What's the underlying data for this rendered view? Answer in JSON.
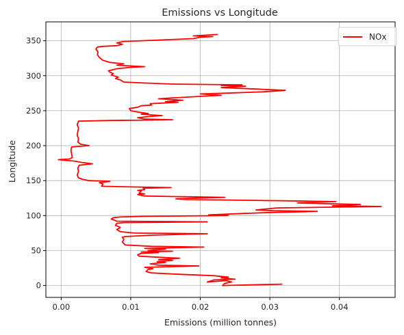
{
  "chart_data": {
    "type": "line",
    "title": "Emissions vs Longitude",
    "xlabel": "Emissions (million tonnes)",
    "ylabel": "Longitude",
    "xlim": [
      -0.0022,
      0.048
    ],
    "ylim": [
      -17,
      377
    ],
    "xticks": [
      0.0,
      0.01,
      0.02,
      0.03,
      0.04
    ],
    "xtick_labels": [
      "0.00",
      "0.01",
      "0.02",
      "0.03",
      "0.04"
    ],
    "yticks": [
      0,
      50,
      100,
      150,
      200,
      250,
      300,
      350
    ],
    "ytick_labels": [
      "0",
      "50",
      "100",
      "150",
      "200",
      "250",
      "300",
      "350"
    ],
    "grid": true,
    "legend": {
      "position": "top-right"
    },
    "series": [
      {
        "name": "NOx",
        "color": "#ff0000",
        "points": [
          [
            0.0318,
            2
          ],
          [
            0.0232,
            0
          ],
          [
            0.0235,
            3
          ],
          [
            0.0245,
            5
          ],
          [
            0.0237,
            7
          ],
          [
            0.021,
            5
          ],
          [
            0.022,
            8
          ],
          [
            0.025,
            9
          ],
          [
            0.023,
            11
          ],
          [
            0.024,
            12
          ],
          [
            0.022,
            14
          ],
          [
            0.017,
            16
          ],
          [
            0.013,
            18
          ],
          [
            0.0122,
            20
          ],
          [
            0.0125,
            23
          ],
          [
            0.0132,
            24
          ],
          [
            0.012,
            26
          ],
          [
            0.0198,
            28
          ],
          [
            0.014,
            29
          ],
          [
            0.0128,
            31
          ],
          [
            0.015,
            33
          ],
          [
            0.0138,
            34
          ],
          [
            0.016,
            36
          ],
          [
            0.014,
            37
          ],
          [
            0.017,
            39
          ],
          [
            0.013,
            41
          ],
          [
            0.0112,
            42
          ],
          [
            0.011,
            44
          ],
          [
            0.0115,
            46
          ],
          [
            0.014,
            47
          ],
          [
            0.0115,
            48
          ],
          [
            0.016,
            49
          ],
          [
            0.0125,
            50
          ],
          [
            0.015,
            52
          ],
          [
            0.012,
            53
          ],
          [
            0.0205,
            55
          ],
          [
            0.013,
            56
          ],
          [
            0.0092,
            58
          ],
          [
            0.0088,
            62
          ],
          [
            0.009,
            66
          ],
          [
            0.0088,
            69
          ],
          [
            0.0092,
            70
          ],
          [
            0.013,
            72
          ],
          [
            0.021,
            74
          ],
          [
            0.0105,
            75
          ],
          [
            0.0085,
            77
          ],
          [
            0.008,
            80
          ],
          [
            0.0085,
            83
          ],
          [
            0.0078,
            86
          ],
          [
            0.008,
            89
          ],
          [
            0.009,
            90
          ],
          [
            0.021,
            91
          ],
          [
            0.008,
            92
          ],
          [
            0.0072,
            95
          ],
          [
            0.0075,
            97
          ],
          [
            0.0085,
            98
          ],
          [
            0.012,
            99
          ],
          [
            0.024,
            100
          ],
          [
            0.0212,
            101
          ],
          [
            0.026,
            103
          ],
          [
            0.029,
            104
          ],
          [
            0.0368,
            106
          ],
          [
            0.0305,
            107
          ],
          [
            0.028,
            108
          ],
          [
            0.03,
            110
          ],
          [
            0.031,
            111
          ],
          [
            0.046,
            113
          ],
          [
            0.039,
            114
          ],
          [
            0.043,
            116
          ],
          [
            0.038,
            117
          ],
          [
            0.034,
            118
          ],
          [
            0.0395,
            120
          ],
          [
            0.033,
            121
          ],
          [
            0.018,
            123
          ],
          [
            0.0165,
            124
          ],
          [
            0.0235,
            126
          ],
          [
            0.0175,
            127
          ],
          [
            0.012,
            128
          ],
          [
            0.011,
            130
          ],
          [
            0.012,
            131
          ],
          [
            0.0112,
            132
          ],
          [
            0.0115,
            135
          ],
          [
            0.011,
            136
          ],
          [
            0.012,
            137
          ],
          [
            0.0118,
            139
          ],
          [
            0.0158,
            140
          ],
          [
            0.01,
            141
          ],
          [
            0.0058,
            142
          ],
          [
            0.006,
            145
          ],
          [
            0.0055,
            147
          ],
          [
            0.007,
            149
          ],
          [
            0.004,
            150
          ],
          [
            0.003,
            152
          ],
          [
            0.0025,
            154
          ],
          [
            0.0023,
            158
          ],
          [
            0.0025,
            163
          ],
          [
            0.0024,
            168
          ],
          [
            0.0026,
            172
          ],
          [
            0.0045,
            174
          ],
          [
            0.003,
            176
          ],
          [
            0.0018,
            178
          ],
          [
            0.0005,
            179
          ],
          [
            -0.0004,
            180
          ],
          [
            0.0012,
            181
          ],
          [
            0.0016,
            183
          ],
          [
            0.0015,
            188
          ],
          [
            0.0014,
            193
          ],
          [
            0.0015,
            198
          ],
          [
            0.0025,
            199
          ],
          [
            0.004,
            200
          ],
          [
            0.0028,
            202
          ],
          [
            0.0024,
            205
          ],
          [
            0.0025,
            210
          ],
          [
            0.0023,
            215
          ],
          [
            0.0024,
            220
          ],
          [
            0.0025,
            225
          ],
          [
            0.0023,
            230
          ],
          [
            0.0025,
            235
          ],
          [
            0.007,
            236
          ],
          [
            0.016,
            237
          ],
          [
            0.012,
            238
          ],
          [
            0.011,
            240
          ],
          [
            0.013,
            242
          ],
          [
            0.0145,
            243
          ],
          [
            0.0115,
            245
          ],
          [
            0.0125,
            246
          ],
          [
            0.011,
            248
          ],
          [
            0.01,
            250
          ],
          [
            0.0098,
            253
          ],
          [
            0.011,
            255
          ],
          [
            0.0115,
            257
          ],
          [
            0.013,
            258
          ],
          [
            0.0128,
            260
          ],
          [
            0.0168,
            262
          ],
          [
            0.015,
            263
          ],
          [
            0.0175,
            265
          ],
          [
            0.014,
            267
          ],
          [
            0.0155,
            268
          ],
          [
            0.021,
            271
          ],
          [
            0.023,
            272
          ],
          [
            0.02,
            274
          ],
          [
            0.0235,
            275
          ],
          [
            0.029,
            277
          ],
          [
            0.0322,
            279
          ],
          [
            0.028,
            281
          ],
          [
            0.023,
            283
          ],
          [
            0.0265,
            285
          ],
          [
            0.023,
            286
          ],
          [
            0.026,
            287
          ],
          [
            0.016,
            288
          ],
          [
            0.011,
            290
          ],
          [
            0.009,
            291
          ],
          [
            0.0085,
            294
          ],
          [
            0.0078,
            296
          ],
          [
            0.0082,
            298
          ],
          [
            0.0072,
            301
          ],
          [
            0.0075,
            303
          ],
          [
            0.007,
            305
          ],
          [
            0.0068,
            307
          ],
          [
            0.008,
            310
          ],
          [
            0.01,
            312
          ],
          [
            0.012,
            313
          ],
          [
            0.008,
            315
          ],
          [
            0.009,
            317
          ],
          [
            0.007,
            319
          ],
          [
            0.006,
            322
          ],
          [
            0.0055,
            326
          ],
          [
            0.0052,
            330
          ],
          [
            0.0053,
            334
          ],
          [
            0.005,
            338
          ],
          [
            0.0052,
            341
          ],
          [
            0.006,
            342
          ],
          [
            0.008,
            343
          ],
          [
            0.0088,
            345
          ],
          [
            0.008,
            347
          ],
          [
            0.009,
            349
          ],
          [
            0.014,
            351
          ],
          [
            0.019,
            353
          ],
          [
            0.02,
            355
          ],
          [
            0.0218,
            356
          ],
          [
            0.019,
            357
          ],
          [
            0.0225,
            359
          ]
        ]
      }
    ]
  }
}
